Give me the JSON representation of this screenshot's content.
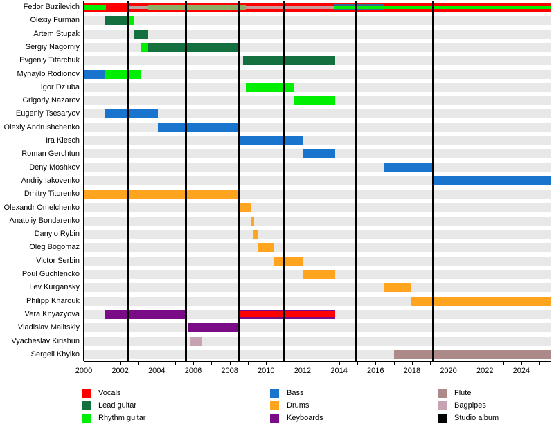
{
  "chart_data": {
    "type": "timeline",
    "title": "",
    "x_axis": {
      "start": 2000,
      "end": 2025.6,
      "minor_tick_step": 1,
      "tick_labels": [
        "2000",
        "2002",
        "2004",
        "2006",
        "2008",
        "2010",
        "2012",
        "2014",
        "2016",
        "2018",
        "2020",
        "2022",
        "2024"
      ]
    },
    "album_release_lines": [
      2002.45,
      2005.6,
      2008.5,
      2011.0,
      2014.95,
      2019.15
    ],
    "row_band_color": "#E8E8E8",
    "palette": {
      "vocals": "#FF0000",
      "lead": "#157040",
      "rhythm": "#00EE00",
      "bass": "#1874CD",
      "drums": "#FFA41E",
      "keyboards": "#7A0C87",
      "flute": "#AC8A8A",
      "bagpipes": "#C6A3B2",
      "silver": "#B5A8A4",
      "olive": "#8CAE66",
      "rosy": "#C79C9C",
      "steel": "#356B8E",
      "album": "#000000"
    },
    "legend": {
      "columns": [
        [
          {
            "key": "vocals",
            "label": "Vocals"
          },
          {
            "key": "lead",
            "label": "Lead guitar"
          },
          {
            "key": "rhythm",
            "label": "Rhythm guitar"
          }
        ],
        [
          {
            "key": "bass",
            "label": "Bass"
          },
          {
            "key": "drums",
            "label": "Drums"
          },
          {
            "key": "keyboards",
            "label": "Keyboards"
          }
        ],
        [
          {
            "key": "flute",
            "label": "Flute"
          },
          {
            "key": "bagpipes",
            "label": "Bagpipes"
          },
          {
            "key": "album",
            "label": "Studio album"
          }
        ]
      ]
    },
    "members": [
      {
        "name": "Fedor Buzilevich",
        "segments": [
          {
            "c": "vocals",
            "s": 2000,
            "e": 2025.6
          },
          {
            "c": "rhythm",
            "s": 2000,
            "e": 2001.2,
            "h": 7
          },
          {
            "c": "silver",
            "s": 2002.45,
            "e": 2003.55,
            "h": 5
          },
          {
            "c": "olive",
            "s": 2003.55,
            "e": 2008.9,
            "h": 7
          },
          {
            "c": "rosy",
            "s": 2008.9,
            "e": 2013.7,
            "h": 5
          },
          {
            "c": "steel",
            "s": 2013.7,
            "e": 2016.5,
            "h": 9
          },
          {
            "c": "rhythm",
            "s": 2013.7,
            "e": 2025.6,
            "h": 5
          }
        ]
      },
      {
        "name": "Olexiy Furman",
        "segments": [
          {
            "c": "lead",
            "s": 2001.15,
            "e": 2002.45
          },
          {
            "c": "rhythm",
            "s": 2002.45,
            "e": 2002.75
          }
        ]
      },
      {
        "name": "Artem Stupak",
        "segments": [
          {
            "c": "lead",
            "s": 2002.75,
            "e": 2003.55
          }
        ]
      },
      {
        "name": "Sergiy Nagorniy",
        "segments": [
          {
            "c": "rhythm",
            "s": 2003.15,
            "e": 2003.55
          },
          {
            "c": "lead",
            "s": 2003.55,
            "e": 2008.55
          }
        ]
      },
      {
        "name": "Evgeniy Titarchuk",
        "segments": [
          {
            "c": "lead",
            "s": 2008.75,
            "e": 2013.8
          }
        ]
      },
      {
        "name": "Myhaylo Rodionov",
        "segments": [
          {
            "c": "bass",
            "s": 2000,
            "e": 2001.15
          },
          {
            "c": "rhythm",
            "s": 2001.15,
            "e": 2003.15
          }
        ]
      },
      {
        "name": "Igor Dziuba",
        "segments": [
          {
            "c": "rhythm",
            "s": 2008.9,
            "e": 2011.5
          }
        ]
      },
      {
        "name": "Grigoriy Nazarov",
        "segments": [
          {
            "c": "rhythm",
            "s": 2011.5,
            "e": 2013.8
          }
        ]
      },
      {
        "name": "Eugeniy Tsesaryov",
        "segments": [
          {
            "c": "bass",
            "s": 2001.15,
            "e": 2004.05
          }
        ]
      },
      {
        "name": "Olexiy Andrushchenko",
        "segments": [
          {
            "c": "bass",
            "s": 2004.05,
            "e": 2008.5
          }
        ]
      },
      {
        "name": "Ira Klesch",
        "segments": [
          {
            "c": "bass",
            "s": 2008.5,
            "e": 2012.05
          }
        ]
      },
      {
        "name": "Roman Gerchtun",
        "segments": [
          {
            "c": "bass",
            "s": 2012.05,
            "e": 2013.8
          }
        ]
      },
      {
        "name": "Deny Moshkov",
        "segments": [
          {
            "c": "bass",
            "s": 2016.5,
            "e": 2019.15
          }
        ]
      },
      {
        "name": "Andriy Iakovenko",
        "segments": [
          {
            "c": "bass",
            "s": 2019.15,
            "e": 2025.6
          }
        ]
      },
      {
        "name": "Dmitry Titorenko",
        "segments": [
          {
            "c": "drums",
            "s": 2000,
            "e": 2008.5
          }
        ]
      },
      {
        "name": "Olexandr Omelchenko",
        "segments": [
          {
            "c": "drums",
            "s": 2008.55,
            "e": 2009.2
          }
        ]
      },
      {
        "name": "Anatoliy Bondarenko",
        "segments": [
          {
            "c": "drums",
            "s": 2009.15,
            "e": 2009.35
          }
        ]
      },
      {
        "name": "Danylo Rybin",
        "segments": [
          {
            "c": "drums",
            "s": 2009.3,
            "e": 2009.55
          }
        ]
      },
      {
        "name": "Oleg Bogomaz",
        "segments": [
          {
            "c": "drums",
            "s": 2009.55,
            "e": 2010.45
          }
        ]
      },
      {
        "name": "Victor Serbin",
        "segments": [
          {
            "c": "drums",
            "s": 2010.45,
            "e": 2012.05
          }
        ]
      },
      {
        "name": "Poul Guchlencko",
        "segments": [
          {
            "c": "drums",
            "s": 2012.05,
            "e": 2013.8
          }
        ]
      },
      {
        "name": "Lev Kurgansky",
        "segments": [
          {
            "c": "drums",
            "s": 2016.5,
            "e": 2017.95
          }
        ]
      },
      {
        "name": "Philipp Kharouk",
        "segments": [
          {
            "c": "drums",
            "s": 2017.95,
            "e": 2025.6
          }
        ]
      },
      {
        "name": "Vera Knyazyova",
        "segments": [
          {
            "c": "keyboards",
            "s": 2001.15,
            "e": 2005.6
          },
          {
            "c": "keyboards",
            "s": 2008.55,
            "e": 2013.8
          },
          {
            "c": "vocals",
            "s": 2008.55,
            "e": 2013.8,
            "h": 8
          }
        ]
      },
      {
        "name": "Vladislav Malitskiy",
        "segments": [
          {
            "c": "keyboards",
            "s": 2005.7,
            "e": 2008.5
          }
        ]
      },
      {
        "name": "Vyacheslav Kirishun",
        "segments": [
          {
            "c": "bagpipes",
            "s": 2005.8,
            "e": 2006.5
          }
        ]
      },
      {
        "name": "Sergeii Khylko",
        "segments": [
          {
            "c": "flute",
            "s": 2017.0,
            "e": 2025.6
          }
        ]
      }
    ]
  }
}
